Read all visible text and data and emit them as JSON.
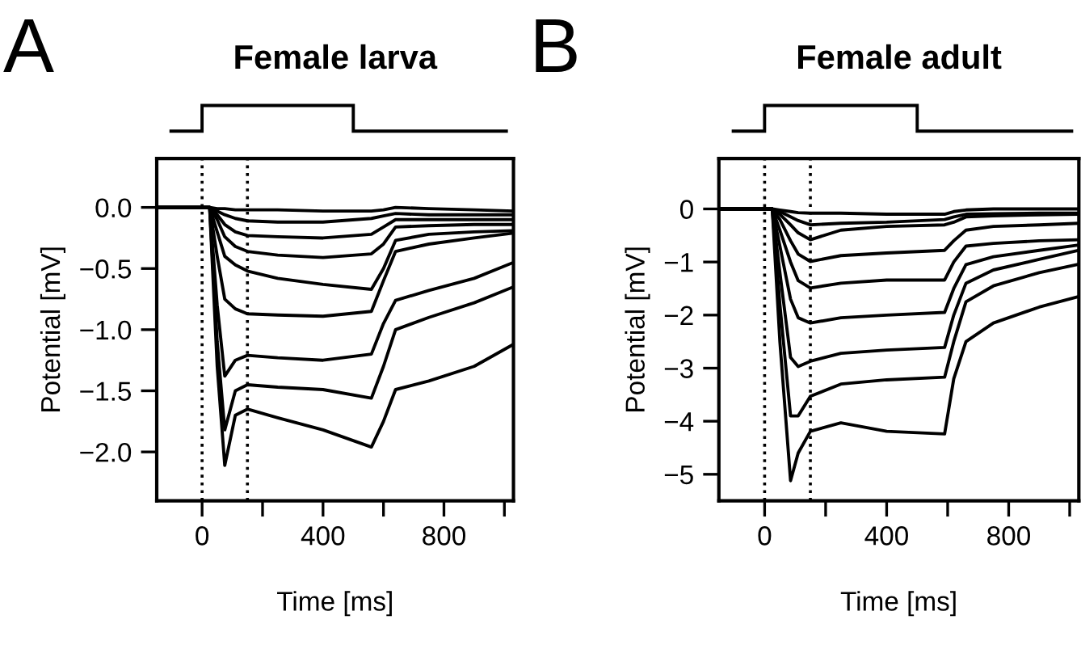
{
  "chart_data": [
    {
      "type": "line",
      "title": "Female larva",
      "xlabel": "Time [ms]",
      "ylabel": "Potential [mV]",
      "annotations": [
        "A"
      ],
      "x": [
        -150,
        25,
        50,
        75,
        110,
        150,
        250,
        400,
        560,
        600,
        640,
        750,
        900,
        1030
      ],
      "xlim": [
        -150,
        1030
      ],
      "xticks": [
        0,
        {
          "value": 200,
          "label": null
        },
        400,
        {
          "value": 600,
          "label": null
        },
        800,
        {
          "value": 1000,
          "label": null
        }
      ],
      "ylim": [
        -2.4,
        0.4
      ],
      "yticks": [
        {
          "value": 0,
          "label": "0.0"
        },
        {
          "value": -0.5,
          "label": "−0.5"
        },
        {
          "value": -1,
          "label": "−1.0"
        },
        {
          "value": -1.5,
          "label": "−1.5"
        },
        {
          "value": -2,
          "label": "−2.0"
        }
      ],
      "grid": false,
      "line_style": "solid",
      "ref_lines": [
        {
          "axis": "x",
          "value": 0,
          "line_style": "dotted",
          "color": "#000000"
        },
        {
          "axis": "x",
          "value": 150,
          "line_style": "dotted",
          "color": "#000000"
        }
      ],
      "series": [
        {
          "color": "#000000",
          "values": [
            0,
            0,
            -0.01,
            -0.01,
            -0.02,
            -0.02,
            -0.02,
            -0.03,
            -0.03,
            -0.02,
            0,
            -0.01,
            -0.02,
            -0.03
          ]
        },
        {
          "color": "#000000",
          "values": [
            0,
            0,
            -0.03,
            -0.06,
            -0.09,
            -0.11,
            -0.12,
            -0.12,
            -0.09,
            -0.07,
            -0.05,
            -0.06,
            -0.06,
            -0.06
          ]
        },
        {
          "color": "#000000",
          "values": [
            0,
            0,
            -0.06,
            -0.14,
            -0.2,
            -0.23,
            -0.24,
            -0.25,
            -0.22,
            -0.16,
            -0.1,
            -0.1,
            -0.1,
            -0.1
          ]
        },
        {
          "color": "#000000",
          "values": [
            0,
            0,
            -0.1,
            -0.24,
            -0.32,
            -0.36,
            -0.39,
            -0.41,
            -0.38,
            -0.3,
            -0.16,
            -0.15,
            -0.14,
            -0.14
          ]
        },
        {
          "color": "#000000",
          "values": [
            0,
            0,
            -0.2,
            -0.4,
            -0.47,
            -0.52,
            -0.58,
            -0.63,
            -0.67,
            -0.5,
            -0.27,
            -0.22,
            -0.2,
            -0.19
          ]
        },
        {
          "color": "#000000",
          "values": [
            0,
            0,
            -0.4,
            -0.75,
            -0.83,
            -0.87,
            -0.88,
            -0.89,
            -0.85,
            -0.6,
            -0.36,
            -0.3,
            -0.25,
            -0.21
          ]
        },
        {
          "color": "#000000",
          "values": [
            0,
            0,
            -0.8,
            -1.38,
            -1.25,
            -1.21,
            -1.23,
            -1.25,
            -1.2,
            -0.95,
            -0.76,
            -0.68,
            -0.58,
            -0.45
          ]
        },
        {
          "color": "#000000",
          "values": [
            0,
            0,
            -1.1,
            -1.82,
            -1.5,
            -1.45,
            -1.47,
            -1.49,
            -1.56,
            -1.3,
            -1.0,
            -0.9,
            -0.78,
            -0.65
          ]
        },
        {
          "color": "#000000",
          "values": [
            0,
            0,
            -1.3,
            -2.11,
            -1.7,
            -1.65,
            -1.72,
            -1.82,
            -1.96,
            -1.75,
            -1.49,
            -1.42,
            -1.3,
            -1.12
          ]
        }
      ]
    },
    {
      "type": "line",
      "title": "Female adult",
      "xlabel": "Time [ms]",
      "ylabel": "Potential [mV]",
      "annotations": [
        "B"
      ],
      "x": [
        -150,
        25,
        50,
        85,
        110,
        150,
        250,
        400,
        590,
        620,
        660,
        750,
        900,
        1030
      ],
      "xlim": [
        -150,
        1030
      ],
      "xticks": [
        0,
        {
          "value": 200,
          "label": null
        },
        400,
        {
          "value": 600,
          "label": null
        },
        800,
        {
          "value": 1000,
          "label": null
        }
      ],
      "ylim": [
        -5.5,
        0.95
      ],
      "yticks": [
        0,
        {
          "value": -1,
          "label": "−1"
        },
        {
          "value": -2,
          "label": "−2"
        },
        {
          "value": -3,
          "label": "−3"
        },
        {
          "value": -4,
          "label": "−4"
        },
        {
          "value": -5,
          "label": "−5"
        }
      ],
      "grid": false,
      "line_style": "solid",
      "ref_lines": [
        {
          "axis": "x",
          "value": 0,
          "line_style": "dotted",
          "color": "#000000"
        },
        {
          "axis": "x",
          "value": 150,
          "line_style": "dotted",
          "color": "#000000"
        }
      ],
      "series": [
        {
          "color": "#000000",
          "values": [
            0,
            0,
            -0.02,
            -0.05,
            -0.07,
            -0.08,
            -0.08,
            -0.1,
            -0.1,
            -0.05,
            -0.02,
            0,
            0,
            0
          ]
        },
        {
          "color": "#000000",
          "values": [
            0,
            0,
            -0.05,
            -0.15,
            -0.22,
            -0.3,
            -0.27,
            -0.25,
            -0.2,
            -0.15,
            -0.1,
            -0.09,
            -0.08,
            -0.08
          ]
        },
        {
          "color": "#000000",
          "values": [
            0,
            0,
            -0.1,
            -0.3,
            -0.45,
            -0.58,
            -0.4,
            -0.33,
            -0.3,
            -0.25,
            -0.15,
            -0.13,
            -0.11,
            -0.1
          ]
        },
        {
          "color": "#000000",
          "values": [
            0,
            0,
            -0.2,
            -0.6,
            -0.85,
            -0.99,
            -0.88,
            -0.83,
            -0.78,
            -0.6,
            -0.4,
            -0.33,
            -0.3,
            -0.27
          ]
        },
        {
          "color": "#000000",
          "values": [
            0,
            0,
            -0.4,
            -1.0,
            -1.35,
            -1.49,
            -1.4,
            -1.34,
            -1.34,
            -1.0,
            -0.7,
            -0.65,
            -0.6,
            -0.58
          ]
        },
        {
          "color": "#000000",
          "values": [
            0,
            0,
            -0.7,
            -1.7,
            -2.05,
            -2.15,
            -2.05,
            -2.0,
            -1.95,
            -1.5,
            -1.05,
            -0.9,
            -0.78,
            -0.68
          ]
        },
        {
          "color": "#000000",
          "values": [
            0,
            0,
            -1.2,
            -2.8,
            -2.97,
            -2.87,
            -2.72,
            -2.66,
            -2.61,
            -2.0,
            -1.4,
            -1.15,
            -0.95,
            -0.78
          ]
        },
        {
          "color": "#000000",
          "values": [
            0,
            0,
            -1.8,
            -3.9,
            -3.9,
            -3.53,
            -3.3,
            -3.22,
            -3.17,
            -2.5,
            -1.75,
            -1.45,
            -1.2,
            -1.04
          ]
        },
        {
          "color": "#000000",
          "values": [
            0,
            0,
            -2.5,
            -5.12,
            -4.6,
            -4.19,
            -4.03,
            -4.19,
            -4.24,
            -3.2,
            -2.5,
            -2.15,
            -1.85,
            -1.65
          ]
        }
      ]
    }
  ]
}
